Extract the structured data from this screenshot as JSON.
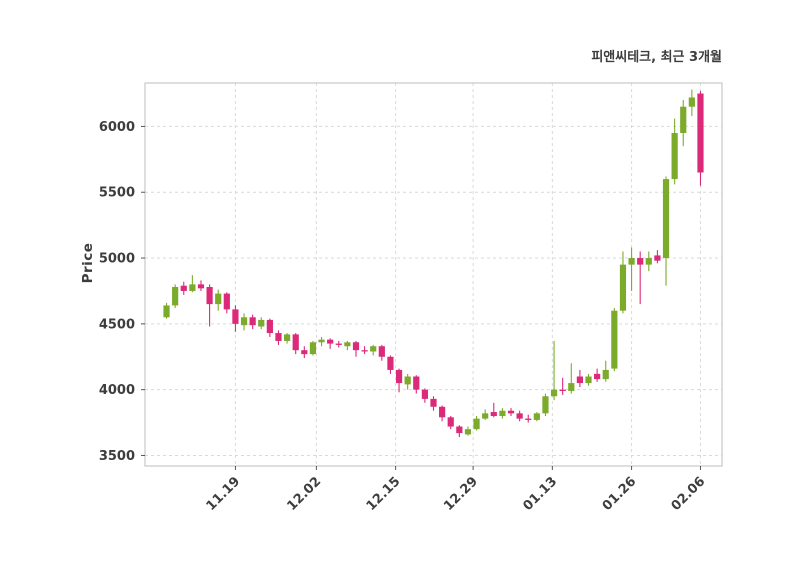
{
  "title": "피앤씨테크, 최근 3개월",
  "ylabel": "Price",
  "xlabel": "",
  "chart_data": {
    "type": "candlestick",
    "title": "피앤씨테크, 최근 3개월",
    "ylabel": "Price",
    "up_color": "#7cab2c",
    "down_color": "#dc2a7a",
    "grid_color": "#d9d9d9",
    "axis_color": "#c8c8c8",
    "tick_color": "#555555",
    "text_color": "#3d3d3d",
    "grid": true,
    "legend": "none",
    "ylim": [
      3420,
      6330
    ],
    "yticks": [
      3500,
      4000,
      4500,
      5000,
      5500,
      6000
    ],
    "xticks": [
      {
        "label": "11.19",
        "pos": 8
      },
      {
        "label": "12.02",
        "pos": 17.4
      },
      {
        "label": "12.15",
        "pos": 26.6
      },
      {
        "label": "12.29",
        "pos": 35.6
      },
      {
        "label": "01.13",
        "pos": 44.8
      },
      {
        "label": "01.26",
        "pos": 54
      },
      {
        "label": "02.06",
        "pos": 62
      }
    ],
    "columns": [
      "date",
      "open",
      "high",
      "low",
      "close"
    ],
    "ohlc": [
      [
        "11.08",
        4550,
        4660,
        4540,
        4640
      ],
      [
        "11.09",
        4640,
        4800,
        4620,
        4780
      ],
      [
        "11.10",
        4790,
        4820,
        4720,
        4750
      ],
      [
        "11.13",
        4750,
        4870,
        4740,
        4800
      ],
      [
        "11.14",
        4800,
        4830,
        4750,
        4770
      ],
      [
        "11.15",
        4780,
        4800,
        4480,
        4650
      ],
      [
        "11.16",
        4650,
        4760,
        4600,
        4730
      ],
      [
        "11.17",
        4730,
        4740,
        4580,
        4610
      ],
      [
        "11.20",
        4610,
        4640,
        4440,
        4500
      ],
      [
        "11.21",
        4490,
        4580,
        4450,
        4550
      ],
      [
        "11.22",
        4550,
        4570,
        4460,
        4490
      ],
      [
        "11.23",
        4480,
        4550,
        4460,
        4530
      ],
      [
        "11.24",
        4530,
        4540,
        4400,
        4430
      ],
      [
        "11.27",
        4430,
        4450,
        4340,
        4370
      ],
      [
        "11.28",
        4370,
        4430,
        4350,
        4420
      ],
      [
        "11.29",
        4420,
        4430,
        4270,
        4300
      ],
      [
        "11.30",
        4300,
        4330,
        4240,
        4270
      ],
      [
        "12.01",
        4270,
        4370,
        4260,
        4360
      ],
      [
        "12.04",
        4360,
        4400,
        4330,
        4380
      ],
      [
        "12.05",
        4380,
        4390,
        4310,
        4350
      ],
      [
        "12.06",
        4350,
        4370,
        4320,
        4340
      ],
      [
        "12.07",
        4330,
        4370,
        4300,
        4360
      ],
      [
        "12.08",
        4360,
        4370,
        4250,
        4300
      ],
      [
        "12.11",
        4300,
        4330,
        4270,
        4290
      ],
      [
        "12.12",
        4290,
        4340,
        4260,
        4330
      ],
      [
        "12.13",
        4330,
        4340,
        4220,
        4250
      ],
      [
        "12.14",
        4250,
        4260,
        4120,
        4150
      ],
      [
        "12.15",
        4150,
        4160,
        3980,
        4050
      ],
      [
        "12.18",
        4040,
        4120,
        4000,
        4100
      ],
      [
        "12.19",
        4100,
        4110,
        3970,
        4000
      ],
      [
        "12.20",
        4000,
        4010,
        3900,
        3930
      ],
      [
        "12.21",
        3930,
        3950,
        3840,
        3870
      ],
      [
        "12.22",
        3870,
        3880,
        3760,
        3790
      ],
      [
        "12.26",
        3790,
        3800,
        3700,
        3720
      ],
      [
        "12.27",
        3720,
        3730,
        3640,
        3670
      ],
      [
        "12.28",
        3660,
        3720,
        3650,
        3700
      ],
      [
        "12.29",
        3700,
        3800,
        3690,
        3780
      ],
      [
        "01.02",
        3780,
        3850,
        3770,
        3820
      ],
      [
        "01.03",
        3830,
        3900,
        3790,
        3800
      ],
      [
        "01.04",
        3800,
        3860,
        3780,
        3840
      ],
      [
        "01.05",
        3840,
        3860,
        3800,
        3820
      ],
      [
        "01.08",
        3820,
        3840,
        3760,
        3780
      ],
      [
        "01.09",
        3780,
        3810,
        3750,
        3770
      ],
      [
        "01.10",
        3770,
        3830,
        3760,
        3820
      ],
      [
        "01.11",
        3820,
        3970,
        3800,
        3950
      ],
      [
        "01.12",
        3950,
        4370,
        3920,
        4000
      ],
      [
        "01.15",
        4000,
        4090,
        3960,
        3990
      ],
      [
        "01.16",
        3990,
        4200,
        3970,
        4050
      ],
      [
        "01.17",
        4100,
        4150,
        4020,
        4050
      ],
      [
        "01.18",
        4050,
        4120,
        4030,
        4100
      ],
      [
        "01.19",
        4120,
        4160,
        4060,
        4080
      ],
      [
        "01.22",
        4080,
        4220,
        4060,
        4150
      ],
      [
        "01.23",
        4160,
        4620,
        4140,
        4600
      ],
      [
        "01.24",
        4600,
        5050,
        4580,
        4950
      ],
      [
        "01.25",
        4950,
        5080,
        4750,
        5000
      ],
      [
        "01.26",
        5000,
        5050,
        4650,
        4950
      ],
      [
        "01.29",
        4950,
        5050,
        4900,
        5000
      ],
      [
        "01.30",
        5020,
        5060,
        4960,
        4980
      ],
      [
        "01.31",
        5000,
        5620,
        4790,
        5600
      ],
      [
        "02.01",
        5600,
        6060,
        5560,
        5950
      ],
      [
        "02.02",
        5950,
        6200,
        5850,
        6150
      ],
      [
        "02.05",
        6150,
        6280,
        6080,
        6220
      ],
      [
        "02.06",
        6250,
        6270,
        5550,
        5650
      ]
    ]
  }
}
